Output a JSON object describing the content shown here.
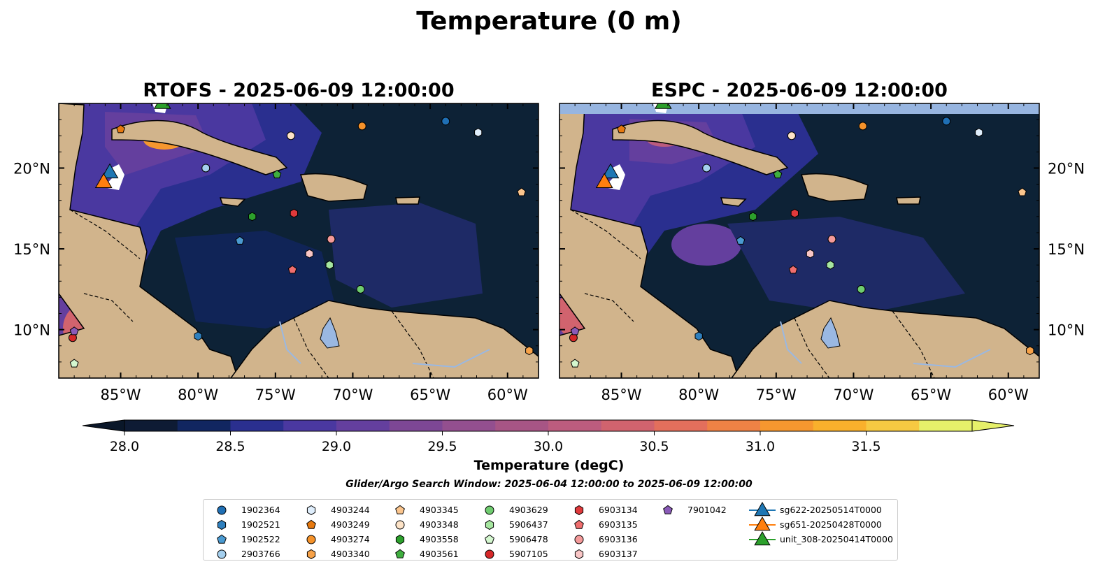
{
  "figure_title": "Temperature (0 m)",
  "colorbar": {
    "label": "Temperature (degC)",
    "ticks": [
      "28.0",
      "28.5",
      "29.0",
      "29.5",
      "30.0",
      "30.5",
      "31.0",
      "31.5"
    ],
    "colors": [
      "#0e1b34",
      "#112660",
      "#2a2f8f",
      "#4a38a0",
      "#643f9e",
      "#7d4795",
      "#934f8f",
      "#a75585",
      "#bc5c7e",
      "#d1636e",
      "#e36f5c",
      "#ef8245",
      "#f6972f",
      "#f9b02c",
      "#f6c942",
      "#e6f06a"
    ],
    "cmap": "thermal"
  },
  "search_window": "Glider/Argo Search Window: 2025-06-04 12:00:00 to 2025-06-09 12:00:00",
  "chart_data": [
    {
      "type": "map",
      "title": "RTOFS - 2025-06-09 12:00:00",
      "model": "RTOFS",
      "xlim": [
        -89,
        -58
      ],
      "ylim": [
        7,
        24
      ],
      "x_ticks": [
        "85°W",
        "80°W",
        "75°W",
        "70°W",
        "65°W",
        "60°W"
      ],
      "y_ticks": [
        "20°N",
        "15°N",
        "10°N"
      ],
      "y_tick_side": "left",
      "nodata_band": false
    },
    {
      "type": "map",
      "title": "ESPC - 2025-06-09 12:00:00",
      "model": "ESPC",
      "xlim": [
        -89,
        -58
      ],
      "ylim": [
        7,
        24
      ],
      "x_ticks": [
        "85°W",
        "80°W",
        "75°W",
        "70°W",
        "65°W",
        "60°W"
      ],
      "y_ticks": [
        "20°N",
        "15°N",
        "10°N"
      ],
      "y_tick_side": "right",
      "nodata_band": true
    }
  ],
  "colors": {
    "ocean_cold": "#0d2236",
    "ocean_mid": "#1e2a66",
    "land": "#d1b48c",
    "lake": "#9ab8e2",
    "nodata": "#97b5e0"
  },
  "platforms": [
    {
      "id": "1902364",
      "marker": "circle",
      "color": "#1f6fb4",
      "lon": -64.0,
      "lat": 22.9
    },
    {
      "id": "1902521",
      "marker": "hexagon",
      "color": "#2e7fbd",
      "lon": -80.0,
      "lat": 9.6
    },
    {
      "id": "1902522",
      "marker": "pentagon",
      "color": "#4a9ad1",
      "lon": -77.3,
      "lat": 15.5
    },
    {
      "id": "2903766",
      "marker": "circle",
      "color": "#a4cfee",
      "lon": -79.5,
      "lat": 20.0
    },
    {
      "id": "4903244",
      "marker": "hexagon",
      "color": "#dfeefc",
      "lon": -61.9,
      "lat": 22.2
    },
    {
      "id": "4903249",
      "marker": "pentagon",
      "color": "#e6790f",
      "lon": -85.0,
      "lat": 22.4
    },
    {
      "id": "4903274",
      "marker": "circle",
      "color": "#f5922a",
      "lon": -69.4,
      "lat": 22.6
    },
    {
      "id": "4903340",
      "marker": "hexagon",
      "color": "#f7a248",
      "lon": -58.6,
      "lat": 8.7
    },
    {
      "id": "4903345",
      "marker": "pentagon",
      "color": "#fbc58d",
      "lon": -59.1,
      "lat": 18.5
    },
    {
      "id": "4903348",
      "marker": "circle",
      "color": "#fde3c7",
      "lon": -74.0,
      "lat": 22.0
    },
    {
      "id": "4903558",
      "marker": "hexagon",
      "color": "#2ca02c",
      "lon": -76.5,
      "lat": 17.0
    },
    {
      "id": "4903561",
      "marker": "pentagon",
      "color": "#3fae3f",
      "lon": -74.9,
      "lat": 19.6
    },
    {
      "id": "4903629",
      "marker": "circle",
      "color": "#6fcc6f",
      "lon": -69.5,
      "lat": 12.5
    },
    {
      "id": "5906437",
      "marker": "hexagon",
      "color": "#a6e6a0",
      "lon": -71.5,
      "lat": 14.0
    },
    {
      "id": "5906478",
      "marker": "pentagon",
      "color": "#d4f7cf",
      "lon": -88.0,
      "lat": 7.9
    },
    {
      "id": "5907105",
      "marker": "circle",
      "color": "#d62728",
      "lon": -88.1,
      "lat": 9.5
    },
    {
      "id": "6903134",
      "marker": "hexagon",
      "color": "#e0393b",
      "lon": -73.8,
      "lat": 17.2
    },
    {
      "id": "6903135",
      "marker": "pentagon",
      "color": "#ef6e6e",
      "lon": -73.9,
      "lat": 13.7
    },
    {
      "id": "6903136",
      "marker": "circle",
      "color": "#f49a9a",
      "lon": -71.4,
      "lat": 15.6
    },
    {
      "id": "6903137",
      "marker": "hexagon",
      "color": "#f9c6c6",
      "lon": -72.8,
      "lat": 14.7
    },
    {
      "id": "7901042",
      "marker": "pentagon",
      "color": "#8a5ab8",
      "lon": -88.0,
      "lat": 9.9
    }
  ],
  "gliders": [
    {
      "id": "sg622-20250514T0000",
      "color": "#1f77b4",
      "lon": -85.7,
      "lat": 19.7
    },
    {
      "id": "sg651-20250428T0000",
      "color": "#ff7f0e",
      "lon": -86.1,
      "lat": 19.1
    },
    {
      "id": "unit_308-20250414T0000",
      "color": "#2ca02c",
      "lon": -82.3,
      "lat": 24.0
    }
  ]
}
